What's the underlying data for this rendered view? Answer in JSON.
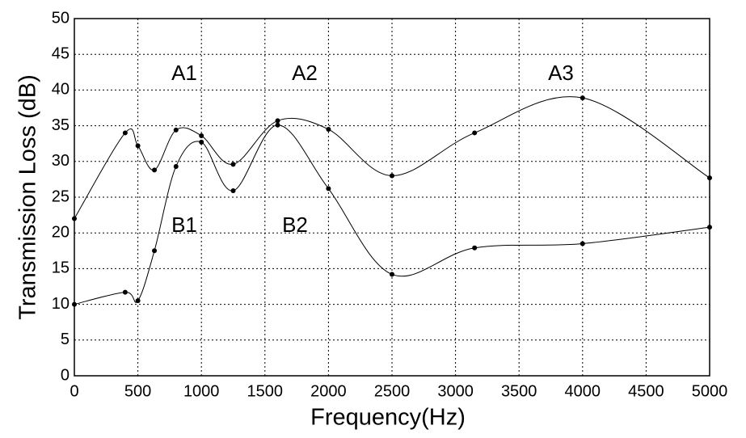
{
  "chart_data": {
    "type": "line",
    "x_label": "Frequency(Hz)",
    "y_label": "Transmission Loss (dB)",
    "x": [
      0,
      400,
      500,
      630,
      800,
      1000,
      1250,
      1600,
      2000,
      2500,
      3150,
      4000,
      5000
    ],
    "series": [
      {
        "color": "#000000",
        "values": [
          22,
          34,
          32.2,
          28.8,
          34.4,
          33.6,
          29.6,
          35.7,
          34.5,
          28,
          34,
          38.9,
          27.7
        ]
      },
      {
        "color": "#000000",
        "values": [
          10,
          11.7,
          10.5,
          17.5,
          29.3,
          32.7,
          25.9,
          35.1,
          26.2,
          14.2,
          17.9,
          18.5,
          20.8
        ]
      }
    ],
    "annotations": [
      "A1",
      "A2",
      "A3",
      "B1",
      "B2"
    ],
    "xlim": [
      0,
      5000
    ],
    "xticks": [
      0,
      500,
      1000,
      1500,
      2000,
      2500,
      3000,
      3500,
      4000,
      4500,
      5000
    ],
    "ylim": [
      0,
      50
    ],
    "yticks": [
      0,
      5,
      10,
      15,
      20,
      25,
      30,
      35,
      40,
      45,
      50
    ],
    "grid": true
  }
}
